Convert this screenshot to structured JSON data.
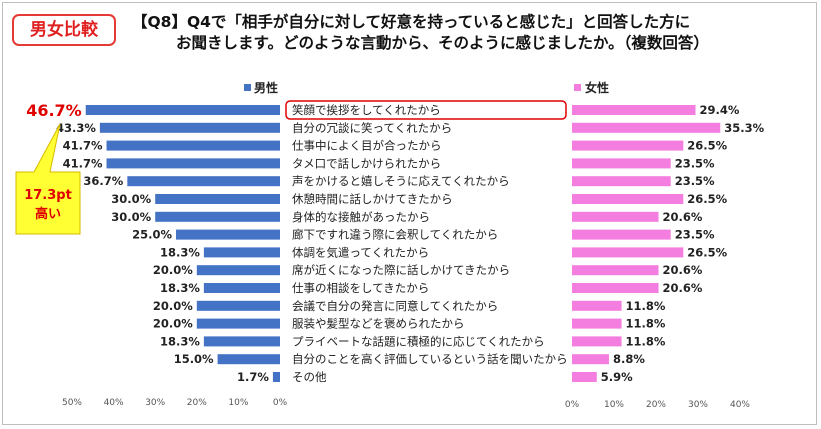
{
  "badge": "男女比較",
  "question": {
    "line1": "【Q8】Q4で「相手が自分に対して好意を持っていると感じた」と回答した方に",
    "line2": "お聞きします。どのような言動から、そのように感じましたか。（複数回答）"
  },
  "callout": {
    "line1": "17.3pt",
    "line2": "高い"
  },
  "colors": {
    "male": "#4472c4",
    "female": "#f47de0",
    "highlight": "#e00000",
    "callout_fill": "#ffff33",
    "callout_stroke": "#d9b800"
  },
  "chart_data": {
    "type": "bar",
    "title": "【Q8】Q4で「相手が自分に対して好意を持っていると感じた」と回答した方にお聞きします。どのような言動から、そのように感じましたか。（複数回答）",
    "categories": [
      "笑顔で挨拶をしてくれたから",
      "自分の冗談に笑ってくれたから",
      "仕事中によく目が合ったから",
      "タメ口で話しかけられたから",
      "声をかけると嬉しそうに応えてくれたから",
      "休憩時間に話しかけてきたから",
      "身体的な接触があったから",
      "廊下ですれ違う際に会釈してくれたから",
      "体調を気遣ってくれたから",
      "席が近くになった際に話しかけてきたから",
      "仕事の相談をしてきたから",
      "会議で自分の発言に同意してくれたから",
      "服装や髪型などを褒められたから",
      "プライベートな話題に積極的に応じてくれたから",
      "自分のことを高く評価しているという話を聞いたから",
      "その他"
    ],
    "series": [
      {
        "name": "男性",
        "values": [
          46.7,
          43.3,
          41.7,
          41.7,
          36.7,
          30.0,
          30.0,
          25.0,
          18.3,
          20.0,
          18.3,
          20.0,
          20.0,
          18.3,
          15.0,
          1.7
        ],
        "labels": [
          "46.7%",
          "43.3%",
          "41.7%",
          "41.7%",
          "36.7%",
          "30.0%",
          "30.0%",
          "25.0%",
          "18.3%",
          "20.0%",
          "18.3%",
          "20.0%",
          "20.0%",
          "18.3%",
          "15.0%",
          "1.7%"
        ],
        "xlim": [
          0,
          50
        ],
        "ticks": [
          "50%",
          "40%",
          "30%",
          "20%",
          "10%",
          "0%"
        ]
      },
      {
        "name": "女性",
        "values": [
          29.4,
          35.3,
          26.5,
          23.5,
          23.5,
          26.5,
          20.6,
          23.5,
          26.5,
          20.6,
          20.6,
          11.8,
          11.8,
          11.8,
          8.8,
          5.9
        ],
        "labels": [
          "29.4%",
          "35.3%",
          "26.5%",
          "23.5%",
          "23.5%",
          "26.5%",
          "20.6%",
          "23.5%",
          "26.5%",
          "20.6%",
          "20.6%",
          "11.8%",
          "11.8%",
          "11.8%",
          "8.8%",
          "5.9%"
        ],
        "xlim": [
          0,
          40
        ],
        "ticks": [
          "0%",
          "10%",
          "20%",
          "30%",
          "40%"
        ]
      }
    ],
    "highlight_index": 0
  }
}
